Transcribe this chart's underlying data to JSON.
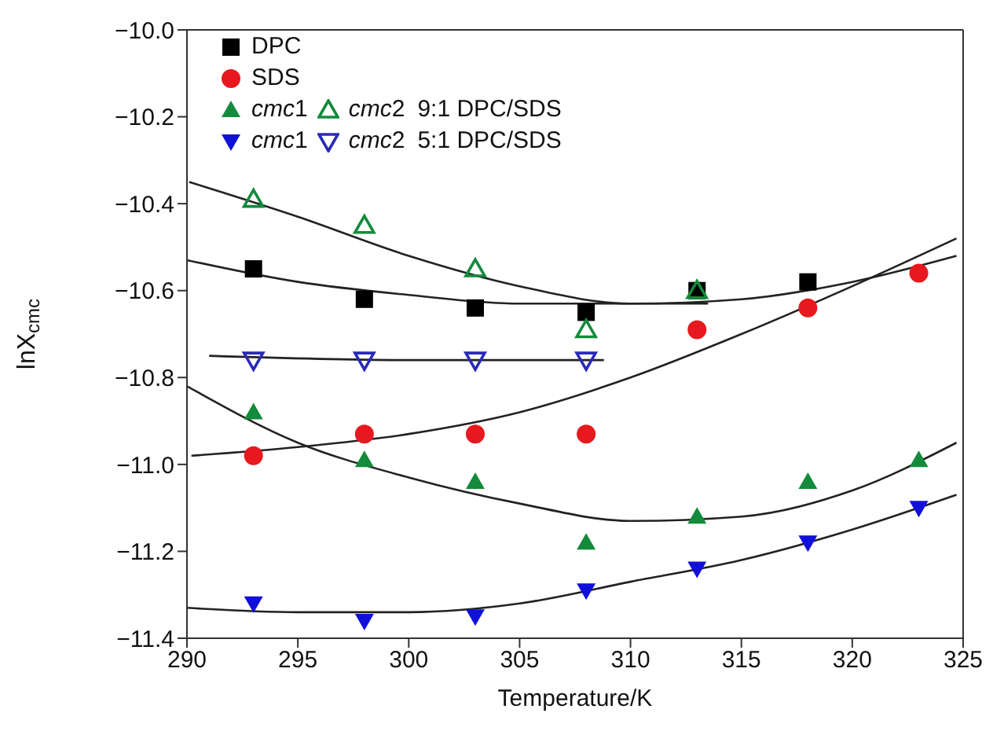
{
  "chart_data": {
    "type": "scatter",
    "xlabel": "Temperature/K",
    "ylabel": "lnX$_{cmc}$",
    "xlim": [
      290,
      325
    ],
    "xticks": [
      290,
      295,
      300,
      305,
      310,
      315,
      320,
      325
    ],
    "ylim": [
      -11.4,
      -10.0
    ],
    "yticks": [
      {
        "value": -11.4,
        "label": "−11.4"
      },
      {
        "value": -11.2,
        "label": "−11.2"
      },
      {
        "value": -11.0,
        "label": "−11.0"
      },
      {
        "value": -10.8,
        "label": "−10.8"
      },
      {
        "value": -10.6,
        "label": "−10.6"
      },
      {
        "value": -10.4,
        "label": "−10.4"
      },
      {
        "value": -10.2,
        "label": "−10.2"
      },
      {
        "value": -10.0,
        "label": "−10.0"
      }
    ],
    "grid": false,
    "legend": "top left",
    "annotations": [
      "9:1 DPC/SDS",
      "5:1 DPC/SDS"
    ],
    "series": [
      {
        "name": "DPC",
        "color": "#000000",
        "marker": "square",
        "x": [
          293,
          298,
          303,
          308,
          313,
          318
        ],
        "values": [
          -10.55,
          -10.62,
          -10.64,
          -10.65,
          -10.6,
          -10.58
        ]
      },
      {
        "name": "SDS",
        "color": "#e8191e",
        "marker": "circle",
        "x": [
          293,
          298,
          303,
          308,
          313,
          318,
          323
        ],
        "values": [
          -10.98,
          -10.93,
          -10.93,
          -10.93,
          -10.69,
          -10.64,
          -10.56
        ]
      },
      {
        "name": "cmc1",
        "color": "#138a3c",
        "marker": "triangle",
        "x": [
          293,
          298,
          303,
          308,
          313,
          318,
          323
        ],
        "values": [
          -10.88,
          -10.99,
          -11.04,
          -11.18,
          -11.12,
          -11.04,
          -10.99
        ]
      },
      {
        "name": "cmc2",
        "color": "#138a3c",
        "marker": "triangle-open",
        "x": [
          293,
          298,
          303,
          308,
          313
        ],
        "values": [
          -10.39,
          -10.45,
          -10.55,
          -10.69,
          -10.6
        ]
      },
      {
        "name": "cmc1",
        "color": "#1010d8",
        "marker": "triangle-down",
        "x": [
          293,
          298,
          303,
          308,
          313,
          318,
          323
        ],
        "values": [
          -11.32,
          -11.36,
          -11.35,
          -11.29,
          -11.24,
          -11.18,
          -11.1
        ]
      },
      {
        "name": "cmc2",
        "color": "#2a2ab8",
        "marker": "triangle-down-open",
        "x": [
          293,
          298,
          303,
          308
        ],
        "values": [
          -10.76,
          -10.76,
          -10.76,
          -10.76
        ]
      },
      {
        "type": "line",
        "color": "#222222",
        "marker": "none",
        "x": [
          290.1,
          295,
          300,
          305,
          310,
          313.5
        ],
        "values": [
          -10.35,
          -10.43,
          -10.52,
          -10.59,
          -10.63,
          -10.63
        ]
      },
      {
        "type": "line",
        "color": "#222222",
        "marker": "none",
        "x": [
          290,
          295,
          300,
          305,
          310,
          315,
          320,
          324.7
        ],
        "values": [
          -10.53,
          -10.58,
          -10.61,
          -10.63,
          -10.63,
          -10.62,
          -10.58,
          -10.52
        ]
      },
      {
        "type": "line",
        "color": "#222222",
        "marker": "none",
        "x": [
          290.2,
          295,
          300,
          305,
          310,
          315,
          320,
          324.7
        ],
        "values": [
          -10.98,
          -10.96,
          -10.93,
          -10.88,
          -10.8,
          -10.7,
          -10.59,
          -10.48
        ]
      },
      {
        "type": "line",
        "color": "#222222",
        "marker": "none",
        "x": [
          291,
          300,
          308.8
        ],
        "values": [
          -10.75,
          -10.76,
          -10.76
        ]
      },
      {
        "type": "line",
        "color": "#222222",
        "marker": "none",
        "x": [
          290,
          295,
          300,
          305,
          310,
          315,
          320,
          324.7
        ],
        "values": [
          -10.82,
          -10.95,
          -11.03,
          -11.09,
          -11.13,
          -11.12,
          -11.06,
          -10.95
        ]
      },
      {
        "type": "line",
        "color": "#222222",
        "marker": "none",
        "x": [
          290,
          295,
          300,
          305,
          310,
          315,
          320,
          324.7
        ],
        "values": [
          -11.33,
          -11.34,
          -11.34,
          -11.32,
          -11.27,
          -11.22,
          -11.15,
          -11.07
        ]
      }
    ]
  }
}
